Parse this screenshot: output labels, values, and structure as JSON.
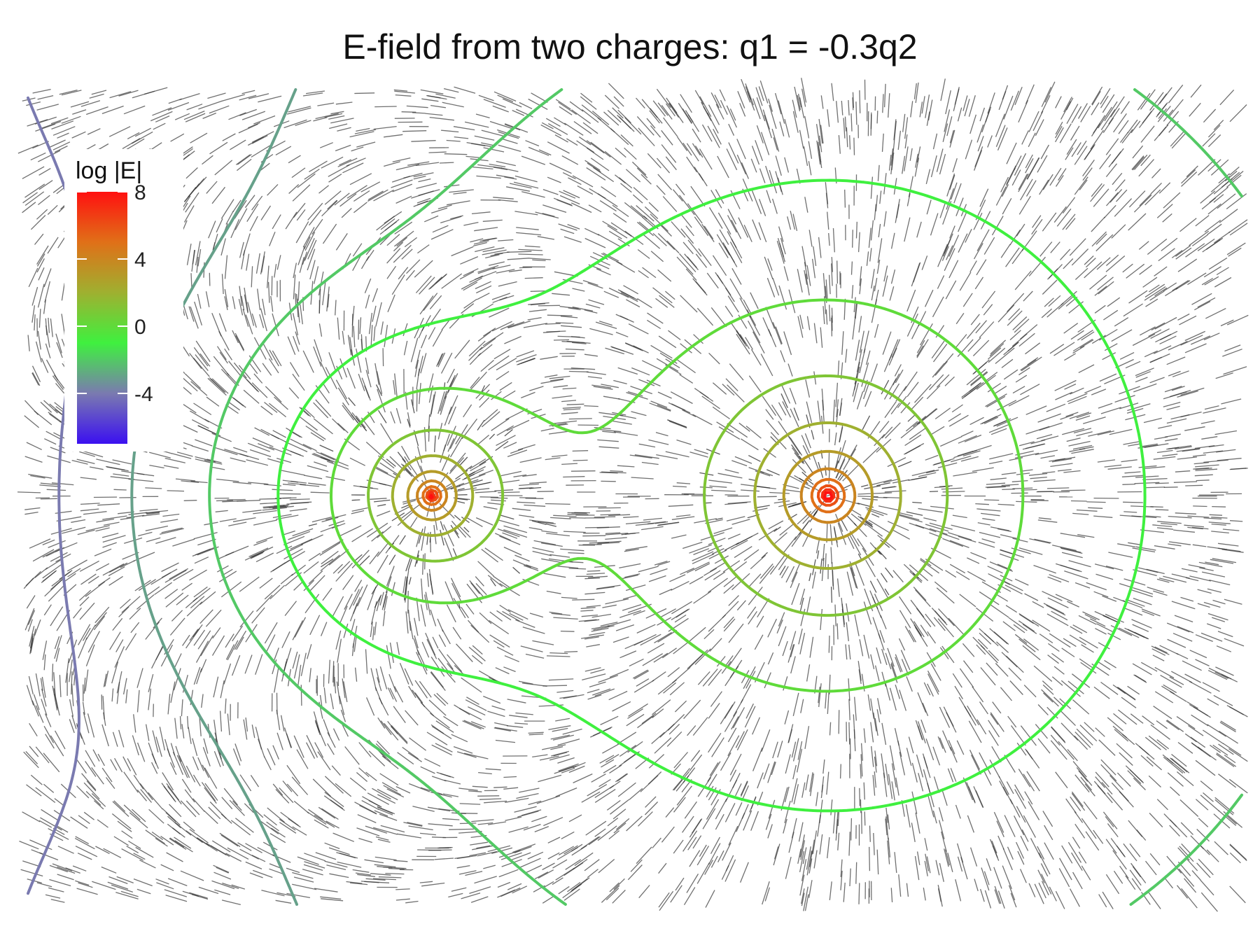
{
  "chart_data": {
    "type": "contour",
    "title": "E-field from two charges: q1 = -0.3q2",
    "xlabel": "",
    "ylabel": "",
    "grid": false,
    "axes_visible": false,
    "charges": [
      {
        "name": "q1",
        "x": -1.0,
        "y": 0.0,
        "relative_charge": -0.3
      },
      {
        "name": "q2",
        "x": 1.0,
        "y": 0.0,
        "relative_charge": 1.0
      }
    ],
    "colorbar": {
      "title": "log |E|",
      "ticks": [
        8,
        4,
        0,
        -4
      ],
      "range": [
        -7,
        8
      ],
      "colors": [
        "#3b10f0",
        "#7a7ab0",
        "#3ff03f",
        "#9fb030",
        "#e07018",
        "#ff1010"
      ],
      "placement": "top-left"
    },
    "contour_levels": [
      -7,
      -6,
      -5,
      -4,
      -3,
      -2,
      -1,
      0,
      1,
      2,
      3,
      4,
      5,
      6,
      7,
      8
    ],
    "field_segments": "short black line segments sampled over the plane, oriented along the local E-field direction"
  }
}
